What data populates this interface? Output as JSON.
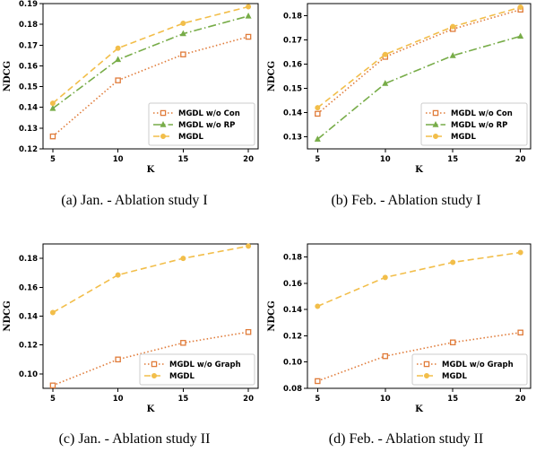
{
  "chart_data": [
    {
      "type": "line",
      "caption": "(a)  Jan. - Ablation study I",
      "xlabel": "K",
      "ylabel": "NDCG",
      "x": [
        5,
        10,
        15,
        20
      ],
      "ylim": [
        0.12,
        0.19
      ],
      "yticks": [
        "0.12",
        "0.13",
        "0.14",
        "0.15",
        "0.16",
        "0.17",
        "0.18",
        "0.19"
      ],
      "series": [
        {
          "name": "MGDL w/o Con",
          "values": [
            0.126,
            0.153,
            0.1655,
            0.174
          ],
          "color": "#E07B39",
          "dash": "1.5,2.5",
          "marker": "square-open"
        },
        {
          "name": "MGDL w/o RP",
          "values": [
            0.1395,
            0.163,
            0.1755,
            0.184
          ],
          "color": "#77AC48",
          "dash": "9,3,1.5,3",
          "marker": "triangle"
        },
        {
          "name": "MGDL",
          "values": [
            0.142,
            0.1685,
            0.1805,
            0.1885
          ],
          "color": "#F2BE4A",
          "dash": "7,4",
          "marker": "circle"
        }
      ],
      "legend": "lower-right"
    },
    {
      "type": "line",
      "caption": "(b)  Feb. - Ablation study I",
      "xlabel": "K",
      "ylabel": "NDCG",
      "x": [
        5,
        10,
        15,
        20
      ],
      "ylim": [
        0.125,
        0.185
      ],
      "yticks": [
        "0.13",
        "0.14",
        "0.15",
        "0.16",
        "0.17",
        "0.18"
      ],
      "series": [
        {
          "name": "MGDL w/o Con",
          "values": [
            0.1395,
            0.163,
            0.1745,
            0.1825
          ],
          "color": "#E07B39",
          "dash": "1.5,2.5",
          "marker": "square-open"
        },
        {
          "name": "MGDL w/o RP",
          "values": [
            0.129,
            0.152,
            0.1635,
            0.1715
          ],
          "color": "#77AC48",
          "dash": "9,3,1.5,3",
          "marker": "triangle"
        },
        {
          "name": "MGDL",
          "values": [
            0.142,
            0.164,
            0.1755,
            0.1835
          ],
          "color": "#F2BE4A",
          "dash": "7,4",
          "marker": "circle"
        }
      ],
      "legend": "lower-right"
    },
    {
      "type": "line",
      "caption": "(c)  Jan. - Ablation study II",
      "xlabel": "K",
      "ylabel": "NDCG",
      "x": [
        5,
        10,
        15,
        20
      ],
      "ylim": [
        0.09,
        0.19
      ],
      "yticks": [
        "0.10",
        "0.12",
        "0.14",
        "0.16",
        "0.18"
      ],
      "series": [
        {
          "name": "MGDL w/o Graph",
          "values": [
            0.092,
            0.11,
            0.1215,
            0.129
          ],
          "color": "#E07B39",
          "dash": "1.5,2.5",
          "marker": "square-open"
        },
        {
          "name": "MGDL",
          "values": [
            0.1425,
            0.1685,
            0.18,
            0.1885
          ],
          "color": "#F2BE4A",
          "dash": "7,4",
          "marker": "circle"
        }
      ],
      "legend": "lower-right"
    },
    {
      "type": "line",
      "caption": "(d)  Feb. - Ablation study II",
      "xlabel": "K",
      "ylabel": "NDCG",
      "x": [
        5,
        10,
        15,
        20
      ],
      "ylim": [
        0.08,
        0.19
      ],
      "yticks": [
        "0.08",
        "0.10",
        "0.12",
        "0.14",
        "0.16",
        "0.18"
      ],
      "series": [
        {
          "name": "MGDL w/o Graph",
          "values": [
            0.0855,
            0.1045,
            0.115,
            0.1225
          ],
          "color": "#E07B39",
          "dash": "1.5,2.5",
          "marker": "square-open"
        },
        {
          "name": "MGDL",
          "values": [
            0.1425,
            0.1645,
            0.176,
            0.1835
          ],
          "color": "#F2BE4A",
          "dash": "7,4",
          "marker": "circle"
        }
      ],
      "legend": "lower-right"
    }
  ]
}
